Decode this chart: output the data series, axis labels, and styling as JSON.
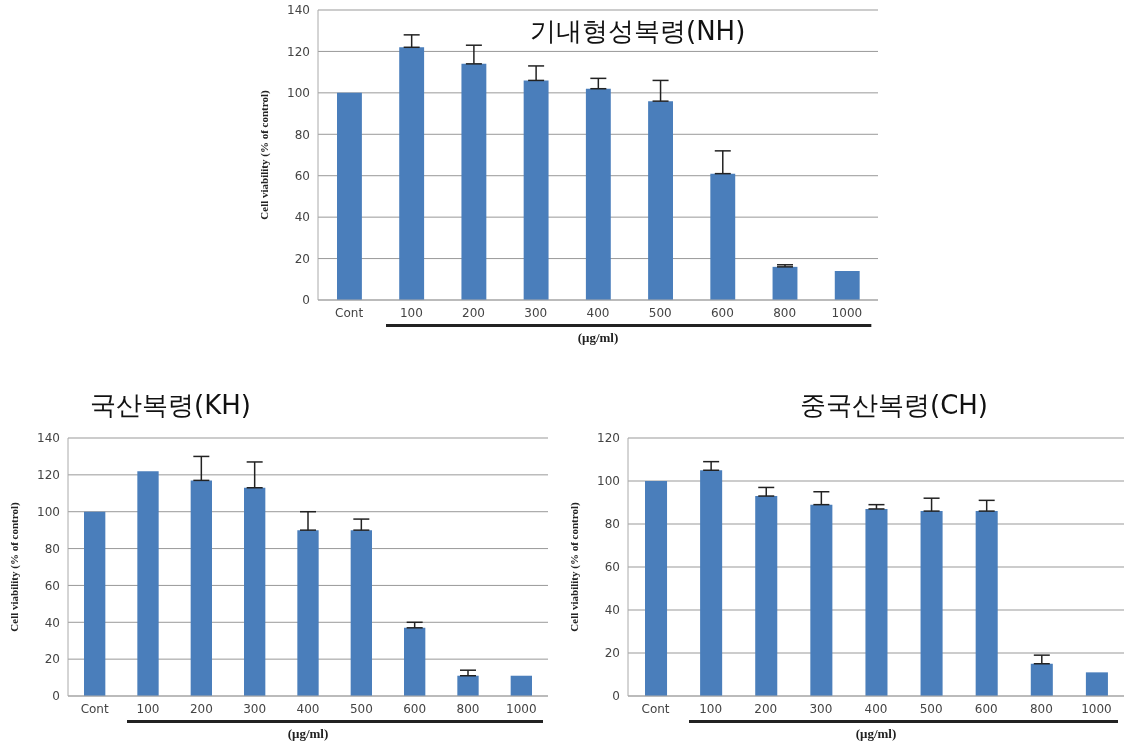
{
  "chart_data": [
    {
      "type": "bar",
      "title": "기내형성복령(NH)",
      "xlabel": "(μg/ml)",
      "ylabel": "Cell viability  (% of control)",
      "categories": [
        "Cont",
        "100",
        "200",
        "300",
        "400",
        "500",
        "600",
        "800",
        "1000"
      ],
      "values": [
        100,
        122,
        114,
        106,
        102,
        96,
        61,
        16,
        14
      ],
      "errors": [
        null,
        [
          122,
          128
        ],
        [
          114,
          123
        ],
        [
          106,
          113
        ],
        [
          102,
          107
        ],
        [
          96,
          106
        ],
        [
          61,
          72
        ],
        [
          16,
          17
        ],
        null
      ],
      "color": "#4a7ebb",
      "ylim": [
        0,
        140
      ],
      "yticks": [
        0,
        20,
        40,
        60,
        80,
        100,
        120,
        140
      ],
      "grid": "y",
      "legend": false
    },
    {
      "type": "bar",
      "title": "국산복령(KH)",
      "xlabel": "(μg/ml)",
      "ylabel": "Cell viability  (% of control)",
      "categories": [
        "Cont",
        "100",
        "200",
        "300",
        "400",
        "500",
        "600",
        "800",
        "1000"
      ],
      "values": [
        100,
        122,
        117,
        113,
        90,
        90,
        37,
        11,
        11
      ],
      "errors": [
        null,
        null,
        [
          117,
          130
        ],
        [
          113,
          127
        ],
        [
          90,
          100
        ],
        [
          90,
          96
        ],
        [
          37,
          40
        ],
        [
          11,
          14
        ],
        null
      ],
      "color": "#4a7ebb",
      "ylim": [
        0,
        140
      ],
      "yticks": [
        0,
        20,
        40,
        60,
        80,
        100,
        120,
        140
      ],
      "grid": "y",
      "legend": false
    },
    {
      "type": "bar",
      "title": "중국산복령(CH)",
      "xlabel": "(μg/ml)",
      "ylabel": "Cell viability  (% of control)",
      "categories": [
        "Cont",
        "100",
        "200",
        "300",
        "400",
        "500",
        "600",
        "800",
        "1000"
      ],
      "values": [
        100,
        105,
        93,
        89,
        87,
        86,
        86,
        15,
        11
      ],
      "errors": [
        null,
        [
          105,
          109
        ],
        [
          93,
          97
        ],
        [
          89,
          95
        ],
        [
          87,
          89
        ],
        [
          86,
          92
        ],
        [
          86,
          91
        ],
        [
          15,
          19
        ],
        null
      ],
      "color": "#4a7ebb",
      "ylim": [
        0,
        120
      ],
      "yticks": [
        0,
        20,
        40,
        60,
        80,
        100,
        120
      ],
      "grid": "y",
      "legend": false
    }
  ]
}
